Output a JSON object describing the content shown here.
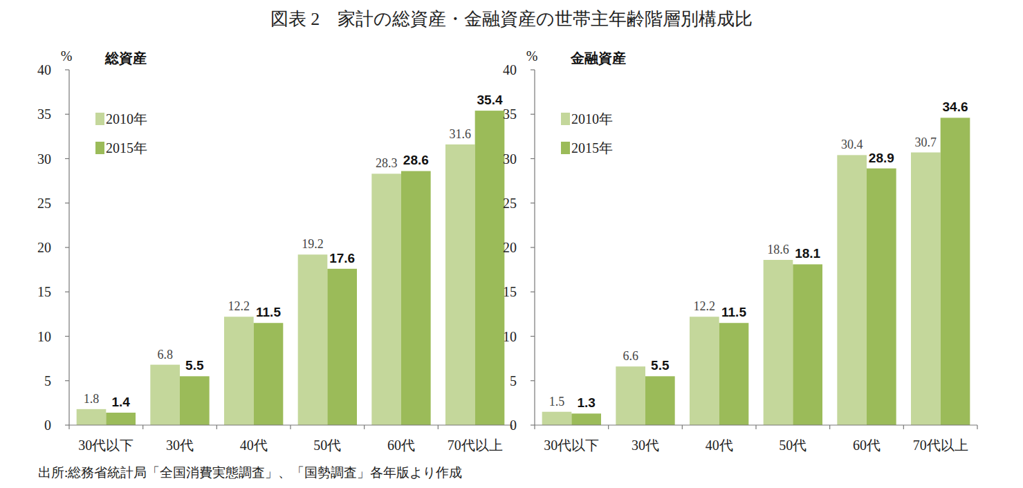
{
  "title": "図表 2　家計の総資産・金融資産の世帯主年齢階層別構成比",
  "source": "出所:総務省統計局「全国消費実態調査」、「国勢調査」各年版より作成",
  "chart_data": [
    {
      "type": "bar",
      "title": "総資産",
      "y_label": "%",
      "categories": [
        "30代以下",
        "30代",
        "40代",
        "50代",
        "60代",
        "70代以上"
      ],
      "series": [
        {
          "name": "2010年",
          "color": "#c4d79b",
          "values": [
            1.8,
            6.8,
            12.2,
            19.2,
            28.3,
            31.6
          ]
        },
        {
          "name": "2015年",
          "color": "#9bbb59",
          "values": [
            1.4,
            5.5,
            11.5,
            17.6,
            28.6,
            35.4
          ]
        }
      ],
      "ylim": [
        0,
        40
      ],
      "yticks": [
        0,
        5,
        10,
        15,
        20,
        25,
        30,
        35,
        40
      ],
      "grid": false,
      "legend": "upper-left",
      "data_labels": true
    },
    {
      "type": "bar",
      "title": "金融資産",
      "y_label": "%",
      "categories": [
        "30代以下",
        "30代",
        "40代",
        "50代",
        "60代",
        "70代以上"
      ],
      "series": [
        {
          "name": "2010年",
          "color": "#c4d79b",
          "values": [
            1.5,
            6.6,
            12.2,
            18.6,
            30.4,
            30.7
          ]
        },
        {
          "name": "2015年",
          "color": "#9bbb59",
          "values": [
            1.3,
            5.5,
            11.5,
            18.1,
            28.9,
            34.6
          ]
        }
      ],
      "ylim": [
        0,
        40
      ],
      "yticks": [
        0,
        5,
        10,
        15,
        20,
        25,
        30,
        35,
        40
      ],
      "grid": false,
      "legend": "upper-left",
      "data_labels": true
    }
  ]
}
